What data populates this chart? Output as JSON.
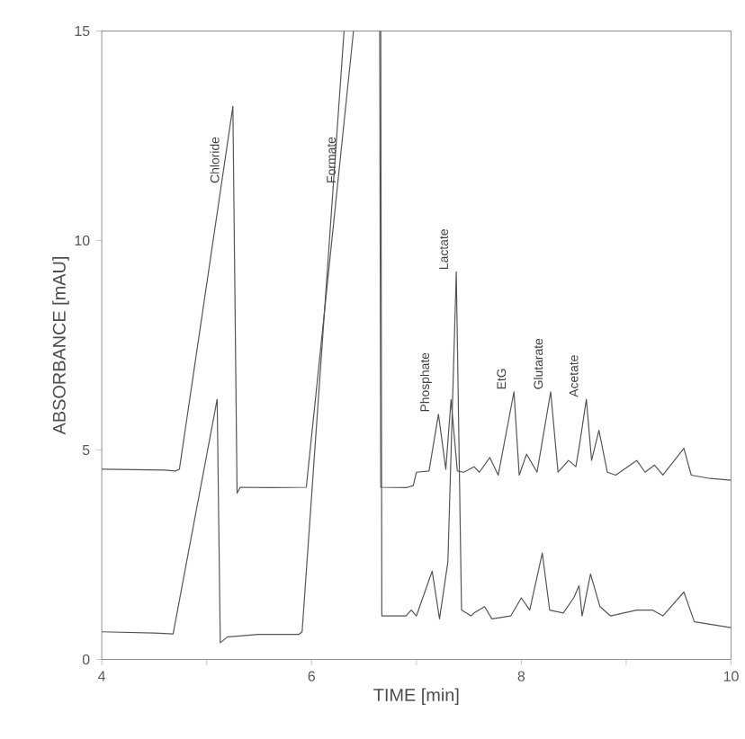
{
  "chart_data": {
    "type": "line",
    "xlabel": "TIME [min]",
    "ylabel": "ABSORBANCE [mAU]",
    "xlim": [
      4,
      10
    ],
    "ylim": [
      0,
      15
    ],
    "xticks": [
      4,
      {
        "value": 5,
        "label": null
      },
      6,
      {
        "value": 7,
        "label": null
      },
      8,
      {
        "value": 9,
        "label": null
      },
      10
    ],
    "yticks": [
      0,
      5,
      10,
      15
    ],
    "grid": false,
    "marker": "none",
    "line_style": "solid",
    "series": [
      {
        "color": "#555555",
        "x": [
          4,
          4.6,
          4.7,
          4.74,
          5.25,
          5.29,
          5.32,
          5.6,
          5.95,
          6.4,
          null,
          6.65,
          6.66,
          6.9,
          6.97,
          7.0,
          7.12,
          7.21,
          7.28,
          7.33,
          7.39,
          7.45,
          7.55,
          7.6,
          7.7,
          7.78,
          7.93,
          7.98,
          8.05,
          8.15,
          8.28,
          8.35,
          8.45,
          8.52,
          8.55,
          8.62,
          8.67,
          8.74,
          8.82,
          8.9,
          9.1,
          9.18,
          9.27,
          9.35,
          9.55,
          9.62,
          9.8,
          10
        ],
        "values": [
          4.54,
          4.52,
          4.5,
          4.54,
          13.2,
          3.97,
          4.11,
          4.1,
          4.11,
          15,
          null,
          15,
          4.11,
          4.1,
          4.15,
          4.47,
          4.5,
          5.85,
          4.54,
          6.2,
          4.5,
          4.47,
          4.6,
          4.47,
          4.82,
          4.4,
          6.39,
          4.4,
          4.9,
          4.47,
          6.39,
          4.47,
          4.75,
          4.6,
          5.04,
          6.21,
          4.75,
          5.47,
          4.47,
          4.4,
          4.75,
          4.47,
          4.64,
          4.4,
          5.04,
          4.4,
          4.32,
          4.28
        ]
      },
      {
        "color": "#555555",
        "x": [
          4,
          4.5,
          4.68,
          5.1,
          5.13,
          5.2,
          5.5,
          5.88,
          5.91,
          6.31,
          null,
          6.66,
          6.67,
          6.9,
          6.95,
          7.0,
          7.15,
          7.22,
          7.3,
          7.38,
          7.43,
          7.52,
          7.55,
          7.65,
          7.72,
          7.9,
          8.0,
          8.08,
          8.2,
          8.27,
          8.4,
          8.5,
          8.55,
          8.58,
          8.66,
          8.75,
          8.85,
          9.1,
          9.25,
          9.35,
          9.55,
          9.65,
          10
        ],
        "values": [
          0.66,
          0.63,
          0.61,
          6.21,
          0.4,
          0.54,
          0.6,
          0.6,
          0.66,
          15,
          null,
          15,
          1.04,
          1.04,
          1.18,
          1.04,
          2.11,
          0.97,
          2.33,
          9.25,
          1.18,
          1.04,
          1.11,
          1.26,
          0.97,
          1.04,
          1.47,
          1.18,
          2.54,
          1.18,
          1.11,
          1.47,
          1.76,
          1.04,
          2.04,
          1.26,
          1.04,
          1.18,
          1.18,
          1.04,
          1.61,
          0.9,
          0.76
        ]
      }
    ],
    "annotations": [
      {
        "text": "Chloride",
        "x": 5.14,
        "y": 11.4
      },
      {
        "text": "Formate",
        "x": 6.25,
        "y": 11.4
      },
      {
        "text": "Phosphate",
        "x": 7.21,
        "y": 5.85
      },
      {
        "text": "Lactate",
        "x": 7.38,
        "y": 9.25
      },
      {
        "text": "EtG",
        "x": 7.93,
        "y": 6.39
      },
      {
        "text": "Glutarate",
        "x": 8.28,
        "y": 6.39
      },
      {
        "text": "Acetate",
        "x": 8.62,
        "y": 6.21
      }
    ]
  }
}
